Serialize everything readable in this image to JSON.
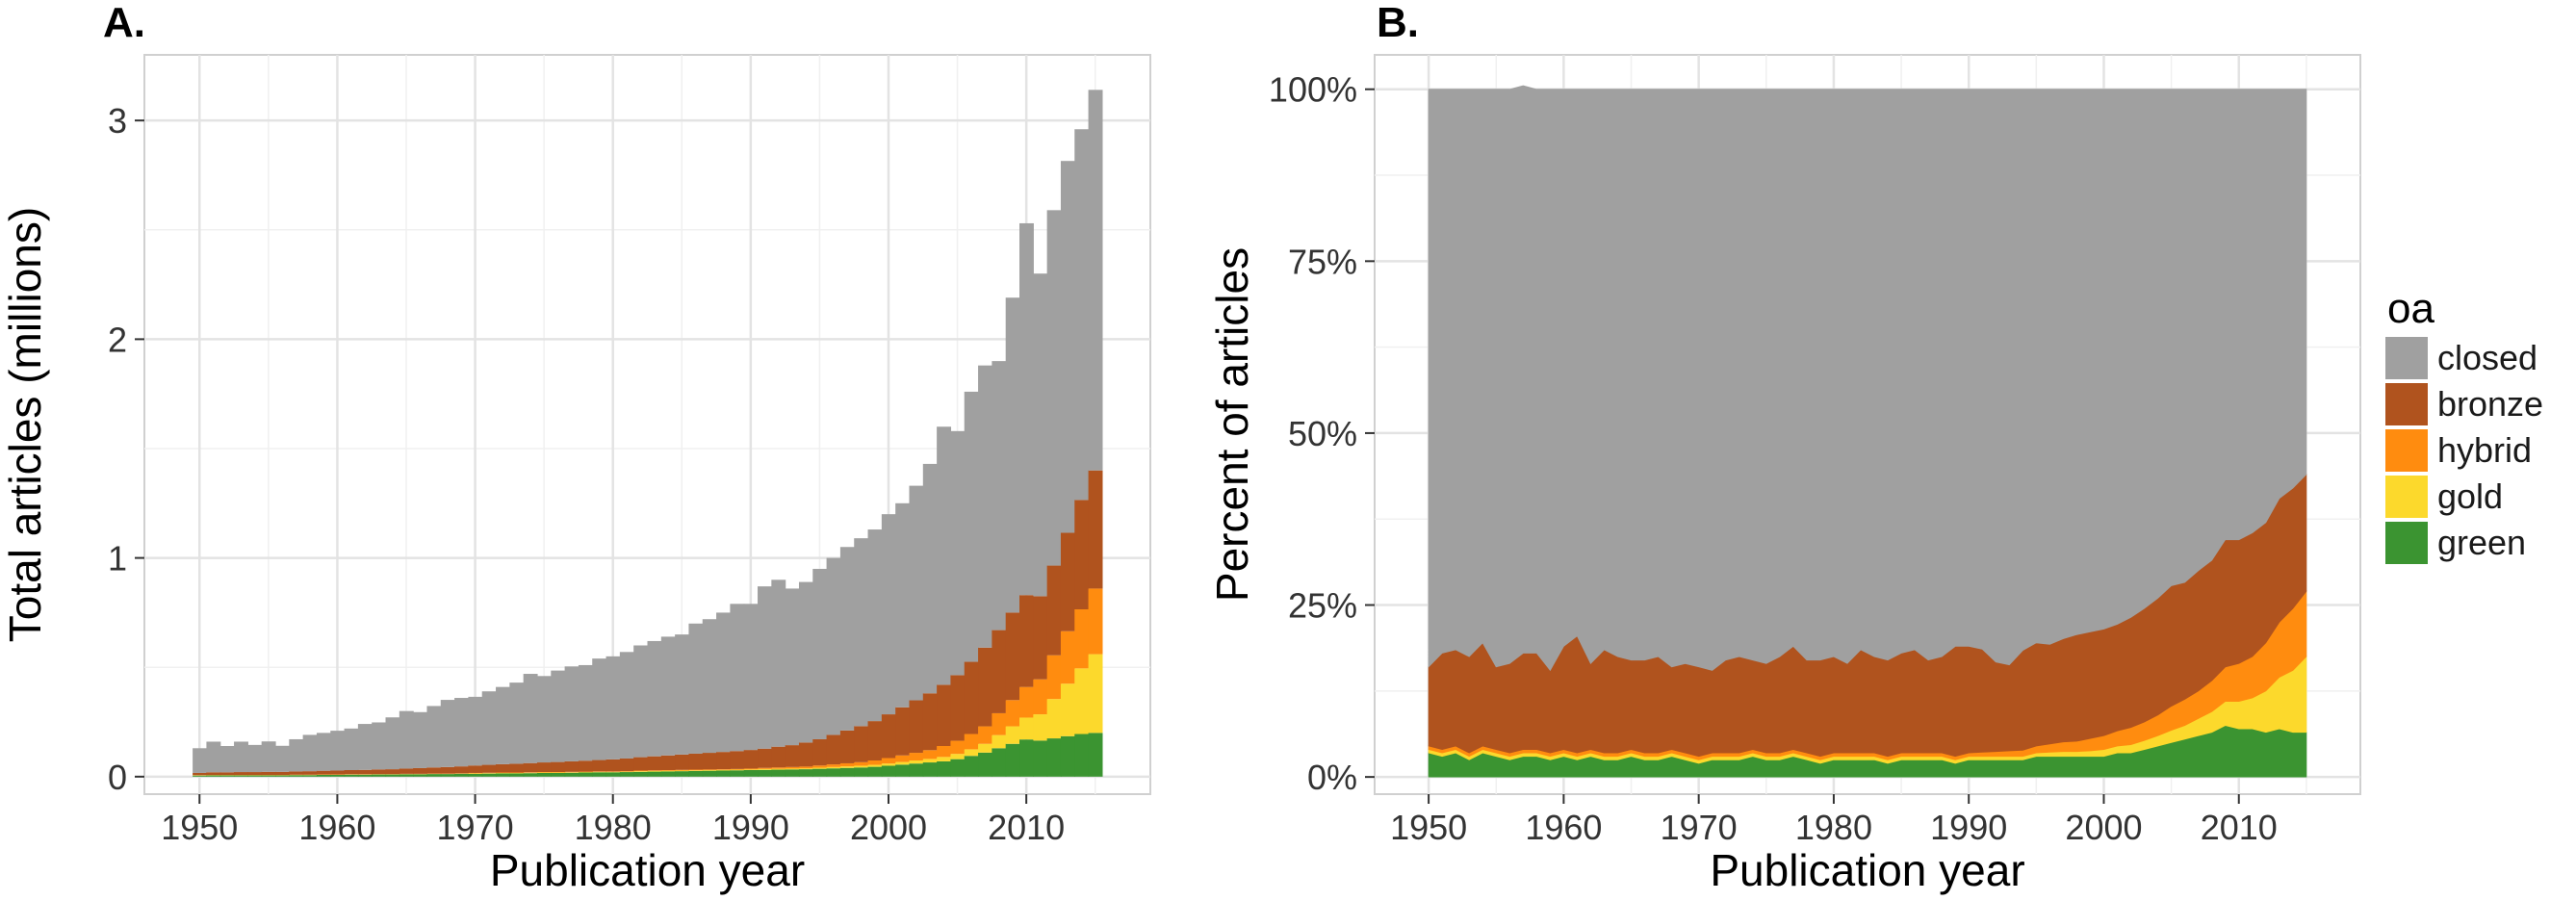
{
  "legend": {
    "title": "oa",
    "items": [
      {
        "key": "closed",
        "label": "closed",
        "color": "#a0a0a0"
      },
      {
        "key": "bronze",
        "label": "bronze",
        "color": "#b0531e"
      },
      {
        "key": "hybrid",
        "label": "hybrid",
        "color": "#ff8c0f"
      },
      {
        "key": "gold",
        "label": "gold",
        "color": "#fcd92c"
      },
      {
        "key": "green",
        "label": "green",
        "color": "#3b9431"
      }
    ]
  },
  "chart_data": [
    {
      "panel": "A.",
      "type": "bar",
      "stacked": true,
      "xlabel": "Publication year",
      "ylabel": "Total articles (millions)",
      "xlim": [
        1946,
        2019
      ],
      "ylim": [
        -0.08,
        3.3
      ],
      "xticks": [
        1950,
        1960,
        1970,
        1980,
        1990,
        2000,
        2010
      ],
      "yticks": [
        0,
        1,
        2,
        3
      ],
      "grid": true,
      "x": [
        1950,
        1951,
        1952,
        1953,
        1954,
        1955,
        1956,
        1957,
        1958,
        1959,
        1960,
        1961,
        1962,
        1963,
        1964,
        1965,
        1966,
        1967,
        1968,
        1969,
        1970,
        1971,
        1972,
        1973,
        1974,
        1975,
        1976,
        1977,
        1978,
        1979,
        1980,
        1981,
        1982,
        1983,
        1984,
        1985,
        1986,
        1987,
        1988,
        1989,
        1990,
        1991,
        1992,
        1993,
        1994,
        1995,
        1996,
        1997,
        1998,
        1999,
        2000,
        2001,
        2002,
        2003,
        2004,
        2005,
        2006,
        2007,
        2008,
        2009,
        2010,
        2011,
        2012,
        2013,
        2014,
        2015
      ],
      "series": [
        {
          "name": "green",
          "values": [
            0.005,
            0.006,
            0.006,
            0.006,
            0.006,
            0.006,
            0.006,
            0.007,
            0.007,
            0.008,
            0.008,
            0.009,
            0.009,
            0.01,
            0.01,
            0.011,
            0.011,
            0.012,
            0.012,
            0.013,
            0.013,
            0.014,
            0.015,
            0.015,
            0.016,
            0.017,
            0.017,
            0.018,
            0.019,
            0.02,
            0.02,
            0.021,
            0.022,
            0.023,
            0.024,
            0.025,
            0.026,
            0.027,
            0.028,
            0.029,
            0.03,
            0.031,
            0.032,
            0.033,
            0.034,
            0.036,
            0.038,
            0.04,
            0.042,
            0.045,
            0.05,
            0.055,
            0.06,
            0.065,
            0.07,
            0.08,
            0.095,
            0.11,
            0.13,
            0.15,
            0.17,
            0.165,
            0.175,
            0.185,
            0.195,
            0.2
          ]
        },
        {
          "name": "gold",
          "values": [
            0.001,
            0.001,
            0.001,
            0.001,
            0.001,
            0.001,
            0.001,
            0.001,
            0.001,
            0.001,
            0.001,
            0.001,
            0.001,
            0.001,
            0.001,
            0.001,
            0.001,
            0.001,
            0.001,
            0.001,
            0.002,
            0.002,
            0.002,
            0.002,
            0.002,
            0.002,
            0.002,
            0.002,
            0.002,
            0.002,
            0.002,
            0.002,
            0.003,
            0.003,
            0.003,
            0.003,
            0.003,
            0.003,
            0.003,
            0.003,
            0.003,
            0.004,
            0.004,
            0.004,
            0.004,
            0.005,
            0.006,
            0.007,
            0.008,
            0.009,
            0.01,
            0.012,
            0.014,
            0.016,
            0.02,
            0.024,
            0.03,
            0.04,
            0.06,
            0.08,
            0.1,
            0.12,
            0.18,
            0.24,
            0.3,
            0.36
          ]
        },
        {
          "name": "hybrid",
          "values": [
            0.001,
            0.001,
            0.001,
            0.001,
            0.001,
            0.001,
            0.001,
            0.001,
            0.001,
            0.001,
            0.001,
            0.001,
            0.001,
            0.001,
            0.001,
            0.001,
            0.001,
            0.001,
            0.001,
            0.001,
            0.002,
            0.002,
            0.002,
            0.002,
            0.002,
            0.002,
            0.002,
            0.002,
            0.002,
            0.002,
            0.002,
            0.002,
            0.003,
            0.003,
            0.003,
            0.003,
            0.003,
            0.003,
            0.003,
            0.003,
            0.004,
            0.005,
            0.006,
            0.007,
            0.008,
            0.01,
            0.012,
            0.014,
            0.016,
            0.02,
            0.025,
            0.03,
            0.035,
            0.04,
            0.05,
            0.06,
            0.07,
            0.08,
            0.1,
            0.12,
            0.14,
            0.16,
            0.2,
            0.24,
            0.27,
            0.3
          ]
        },
        {
          "name": "bronze",
          "values": [
            0.01,
            0.012,
            0.012,
            0.013,
            0.013,
            0.014,
            0.014,
            0.015,
            0.016,
            0.017,
            0.018,
            0.019,
            0.02,
            0.021,
            0.022,
            0.024,
            0.026,
            0.028,
            0.03,
            0.032,
            0.034,
            0.036,
            0.038,
            0.04,
            0.042,
            0.044,
            0.046,
            0.048,
            0.05,
            0.052,
            0.055,
            0.058,
            0.061,
            0.064,
            0.067,
            0.07,
            0.073,
            0.076,
            0.079,
            0.082,
            0.085,
            0.088,
            0.095,
            0.1,
            0.11,
            0.12,
            0.135,
            0.15,
            0.165,
            0.18,
            0.2,
            0.22,
            0.24,
            0.26,
            0.28,
            0.3,
            0.33,
            0.36,
            0.38,
            0.4,
            0.42,
            0.38,
            0.41,
            0.45,
            0.5,
            0.54
          ]
        },
        {
          "name": "closed",
          "values": [
            0.113,
            0.14,
            0.12,
            0.139,
            0.124,
            0.139,
            0.119,
            0.147,
            0.166,
            0.173,
            0.182,
            0.19,
            0.21,
            0.215,
            0.237,
            0.263,
            0.256,
            0.281,
            0.307,
            0.313,
            0.314,
            0.336,
            0.353,
            0.371,
            0.408,
            0.395,
            0.418,
            0.434,
            0.437,
            0.464,
            0.471,
            0.487,
            0.511,
            0.527,
            0.543,
            0.549,
            0.595,
            0.611,
            0.637,
            0.673,
            0.668,
            0.742,
            0.763,
            0.716,
            0.734,
            0.779,
            0.809,
            0.839,
            0.859,
            0.876,
            0.915,
            0.933,
            0.981,
            1.049,
            1.18,
            1.116,
            1.235,
            1.29,
            1.23,
            1.44,
            1.7,
            1.475,
            1.625,
            1.7,
            1.695,
            1.74
          ]
        }
      ]
    },
    {
      "panel": "B.",
      "type": "area",
      "stacked": true,
      "xlabel": "Publication year",
      "ylabel": "Percent of articles",
      "xlim": [
        1946,
        2019
      ],
      "ylim": [
        -2.5,
        105
      ],
      "xticks": [
        1950,
        1960,
        1970,
        1980,
        1990,
        2000,
        2010
      ],
      "yticks": [
        0,
        25,
        50,
        75,
        100
      ],
      "ytick_labels": [
        "0%",
        "25%",
        "50%",
        "75%",
        "100%"
      ],
      "grid": true,
      "x": [
        1950,
        1951,
        1952,
        1953,
        1954,
        1955,
        1956,
        1957,
        1958,
        1959,
        1960,
        1961,
        1962,
        1963,
        1964,
        1965,
        1966,
        1967,
        1968,
        1969,
        1970,
        1971,
        1972,
        1973,
        1974,
        1975,
        1976,
        1977,
        1978,
        1979,
        1980,
        1981,
        1982,
        1983,
        1984,
        1985,
        1986,
        1987,
        1988,
        1989,
        1990,
        1991,
        1992,
        1993,
        1994,
        1995,
        1996,
        1997,
        1998,
        1999,
        2000,
        2001,
        2002,
        2003,
        2004,
        2005,
        2006,
        2007,
        2008,
        2009,
        2010,
        2011,
        2012,
        2013,
        2014,
        2015
      ],
      "series": [
        {
          "name": "green",
          "values": [
            3.5,
            3.0,
            3.5,
            2.5,
            3.5,
            3.0,
            2.5,
            3.0,
            3.0,
            2.5,
            3.0,
            2.5,
            3.0,
            2.5,
            2.5,
            3.0,
            2.5,
            2.5,
            3.0,
            2.5,
            2.0,
            2.5,
            2.5,
            2.5,
            3.0,
            2.5,
            2.5,
            3.0,
            2.5,
            2.0,
            2.5,
            2.5,
            2.5,
            2.5,
            2.0,
            2.5,
            2.5,
            2.5,
            2.5,
            2.0,
            2.5,
            2.5,
            2.5,
            2.5,
            2.5,
            3.0,
            3.0,
            3.0,
            3.0,
            3.0,
            3.0,
            3.5,
            3.5,
            4.0,
            4.5,
            5.0,
            5.5,
            6.0,
            6.5,
            7.5,
            7.0,
            7.0,
            6.5,
            7.0,
            6.5,
            6.5
          ]
        },
        {
          "name": "gold",
          "values": [
            0.5,
            0.5,
            0.5,
            0.5,
            0.5,
            0.5,
            0.5,
            0.5,
            0.5,
            0.5,
            0.5,
            0.5,
            0.5,
            0.5,
            0.5,
            0.5,
            0.5,
            0.5,
            0.5,
            0.5,
            0.5,
            0.5,
            0.5,
            0.5,
            0.5,
            0.5,
            0.5,
            0.5,
            0.5,
            0.5,
            0.5,
            0.5,
            0.5,
            0.5,
            0.5,
            0.5,
            0.5,
            0.5,
            0.5,
            0.5,
            0.5,
            0.5,
            0.5,
            0.5,
            0.5,
            0.5,
            0.6,
            0.7,
            0.7,
            0.8,
            1.0,
            1.0,
            1.2,
            1.3,
            1.5,
            1.8,
            2.0,
            2.5,
            3.0,
            3.5,
            4.0,
            4.5,
            6.0,
            7.5,
            9.0,
            11.0
          ]
        },
        {
          "name": "hybrid",
          "values": [
            0.5,
            0.5,
            0.5,
            0.5,
            0.5,
            0.5,
            0.5,
            0.5,
            0.5,
            0.5,
            0.5,
            0.5,
            0.5,
            0.5,
            0.5,
            0.5,
            0.5,
            0.5,
            0.5,
            0.5,
            0.5,
            0.5,
            0.5,
            0.5,
            0.5,
            0.5,
            0.5,
            0.5,
            0.5,
            0.5,
            0.5,
            0.5,
            0.5,
            0.5,
            0.5,
            0.5,
            0.5,
            0.5,
            0.5,
            0.5,
            0.5,
            0.6,
            0.7,
            0.8,
            0.9,
            1.0,
            1.2,
            1.4,
            1.5,
            1.8,
            2.0,
            2.2,
            2.5,
            2.7,
            3.0,
            3.5,
            3.8,
            4.0,
            4.5,
            5.0,
            5.5,
            6.0,
            7.0,
            8.0,
            9.0,
            9.5
          ]
        },
        {
          "name": "bronze",
          "values": [
            11.5,
            14.0,
            14.0,
            14.0,
            15.0,
            12.0,
            13.0,
            14.0,
            14.0,
            12.0,
            15.0,
            17.0,
            12.5,
            15.0,
            14.0,
            13.0,
            13.5,
            14.0,
            12.0,
            13.0,
            13.0,
            12.0,
            13.5,
            14.0,
            13.0,
            13.0,
            14.0,
            15.0,
            13.5,
            14.0,
            14.0,
            13.0,
            15.0,
            14.0,
            14.0,
            14.5,
            15.0,
            13.5,
            14.0,
            16.0,
            15.5,
            15.0,
            13.0,
            12.5,
            14.5,
            15.0,
            14.5,
            15.0,
            15.5,
            15.5,
            15.5,
            15.5,
            16.0,
            16.5,
            17.0,
            17.5,
            17.0,
            17.5,
            17.5,
            18.5,
            18.0,
            18.0,
            17.5,
            18.0,
            17.5,
            17.0
          ]
        },
        {
          "name": "closed",
          "values": [
            84.0,
            82.0,
            81.5,
            82.5,
            80.5,
            84.0,
            83.5,
            82.5,
            82.0,
            84.5,
            81.0,
            79.5,
            83.5,
            81.5,
            82.5,
            83.0,
            83.0,
            82.5,
            84.0,
            83.5,
            84.0,
            84.5,
            83.0,
            82.5,
            83.0,
            83.5,
            82.5,
            81.0,
            83.0,
            83.0,
            82.5,
            83.5,
            81.5,
            82.5,
            83.0,
            82.0,
            81.5,
            83.0,
            82.5,
            81.0,
            81.0,
            81.4,
            83.3,
            83.7,
            81.6,
            80.5,
            80.7,
            79.9,
            79.3,
            78.9,
            78.5,
            77.8,
            76.8,
            75.5,
            74.0,
            72.2,
            71.7,
            70.0,
            68.5,
            65.5,
            65.5,
            64.5,
            63.0,
            59.5,
            58.0,
            56.0
          ]
        }
      ]
    }
  ]
}
